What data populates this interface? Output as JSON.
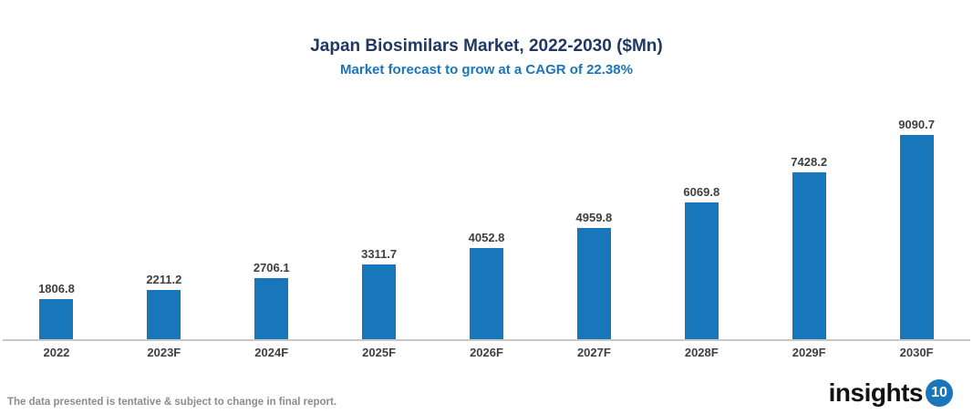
{
  "header": {
    "title": "Japan Biosimilars Market, 2022-2030 ($Mn)",
    "subtitle": "Market forecast to grow at a CAGR of 22.38%"
  },
  "chart_data": {
    "type": "bar",
    "title": "Japan Biosimilars Market, 2022-2030 ($Mn)",
    "subtitle": "Market forecast to grow at a CAGR of 22.38%",
    "categories": [
      "2022",
      "2023F",
      "2024F",
      "2025F",
      "2026F",
      "2027F",
      "2028F",
      "2029F",
      "2030F"
    ],
    "values": [
      1806.8,
      2211.2,
      2706.1,
      3311.7,
      4052.8,
      4959.8,
      6069.8,
      7428.2,
      9090.7
    ],
    "xlabel": "",
    "ylabel": "",
    "ylim": [
      0,
      9500
    ],
    "grid": false,
    "legend": false,
    "value_labels": true,
    "bar_color": "#1877BB"
  },
  "footer": {
    "disclaimer": "The data presented is tentative & subject to change in final report."
  },
  "logo": {
    "text": "insights",
    "badge": "10"
  },
  "colors": {
    "title": "#1F3864",
    "subtitle": "#1B75BC",
    "bar": "#1877BB",
    "label": "#3F3F3F",
    "axis": "#C8C8C8",
    "footer": "#8C8C8C",
    "badge": "#1B75BB"
  }
}
